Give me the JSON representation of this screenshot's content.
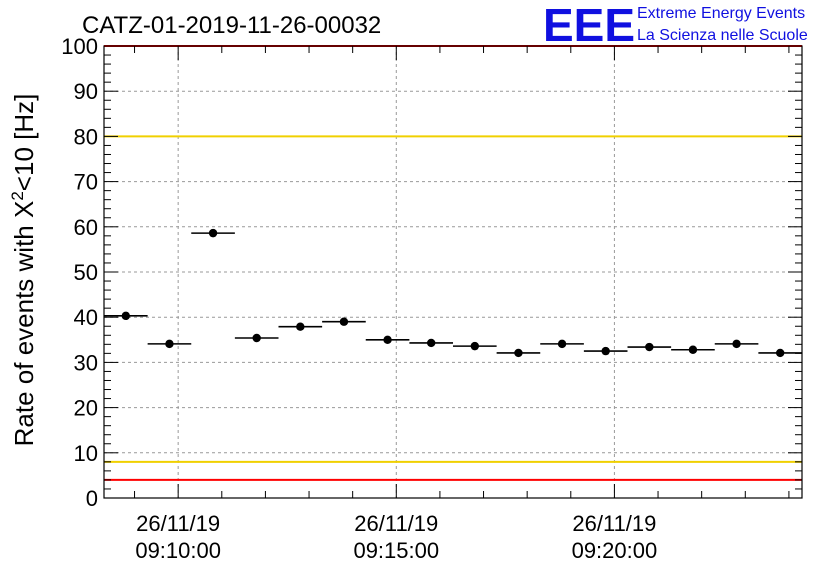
{
  "chart_data": {
    "type": "scatter",
    "title": "CATZ-01-2019-11-26-00032",
    "ylabel_main": "Rate of events with X",
    "ylabel_sup": "2",
    "ylabel_tail": "<10 [Hz]",
    "xlabel": "",
    "ylim": [
      0,
      100
    ],
    "xlim_minutes": [
      8.3,
      24.3
    ],
    "grid": true,
    "logo": {
      "mark": "EEE",
      "line1": "Extreme Energy Events",
      "line2": "La Scienza nelle Scuole"
    },
    "yticks": [
      0,
      10,
      20,
      30,
      40,
      50,
      60,
      70,
      80,
      90,
      100
    ],
    "xticks": [
      {
        "minute": 10,
        "date": "26/11/19",
        "time": "09:10:00"
      },
      {
        "minute": 15,
        "date": "26/11/19",
        "time": "09:15:00"
      },
      {
        "minute": 20,
        "date": "26/11/19",
        "time": "09:20:00"
      }
    ],
    "bin_width_minutes": 1,
    "x": [
      8.8,
      9.8,
      10.8,
      11.8,
      12.8,
      13.8,
      14.8,
      15.8,
      16.8,
      17.8,
      18.8,
      19.8,
      20.8,
      21.8,
      22.8,
      23.8
    ],
    "y": [
      40.3,
      34.1,
      58.6,
      35.4,
      37.9,
      39.0,
      35.0,
      34.3,
      33.6,
      32.1,
      34.1,
      32.5,
      33.4,
      32.8,
      34.1,
      32.1
    ],
    "reference_lines": [
      {
        "value": 80,
        "color": "#f0d000"
      },
      {
        "value": 8,
        "color": "#f0d000"
      },
      {
        "value": 4,
        "color": "#ff0000"
      },
      {
        "value": 100,
        "color": "#ff0000"
      }
    ],
    "colors": {
      "points": "#000000",
      "logo": "#1010e0"
    }
  }
}
